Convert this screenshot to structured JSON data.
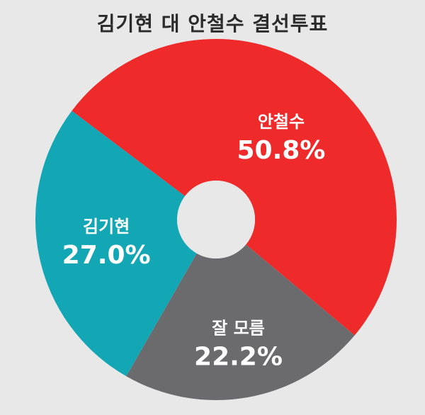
{
  "chart_data": {
    "type": "pie",
    "donut": true,
    "title": "김기현 대 안철수 결선투표",
    "series": [
      {
        "name": "안철수",
        "value": 50.8,
        "label": "50.8%",
        "color": "#ee2a2a"
      },
      {
        "name": "잘 모름",
        "value": 22.2,
        "label": "22.2%",
        "color": "#6b6b6e"
      },
      {
        "name": "김기현",
        "value": 27.0,
        "label": "27.0%",
        "color": "#13a7b6"
      }
    ],
    "legend": "none"
  }
}
